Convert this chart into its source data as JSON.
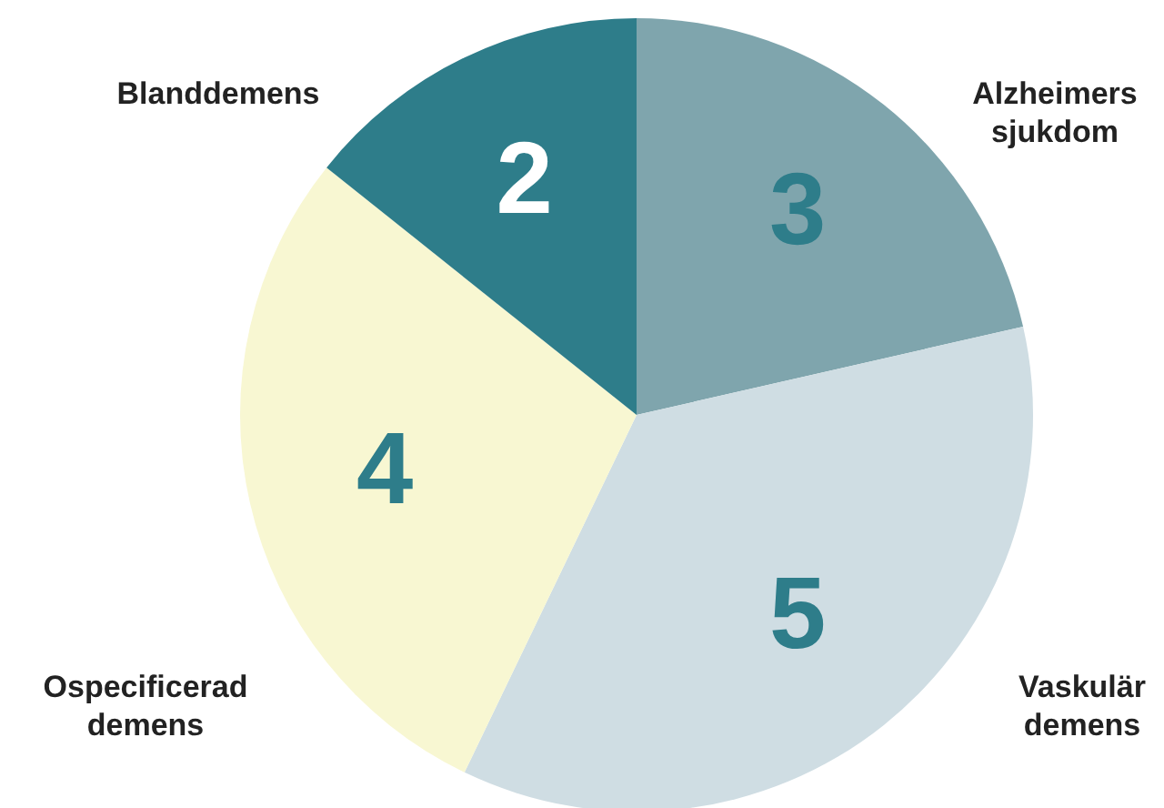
{
  "chart_data": {
    "type": "pie",
    "categories": [
      "Alzheimers sjukdom",
      "Vaskulär demens",
      "Ospecificerad demens",
      "Blanddemens"
    ],
    "values": [
      3,
      5,
      4,
      2
    ],
    "colors": [
      "#7fa5ad",
      "#cfdde3",
      "#f8f7d2",
      "#2e7d8a"
    ],
    "data_labels": true
  }
}
